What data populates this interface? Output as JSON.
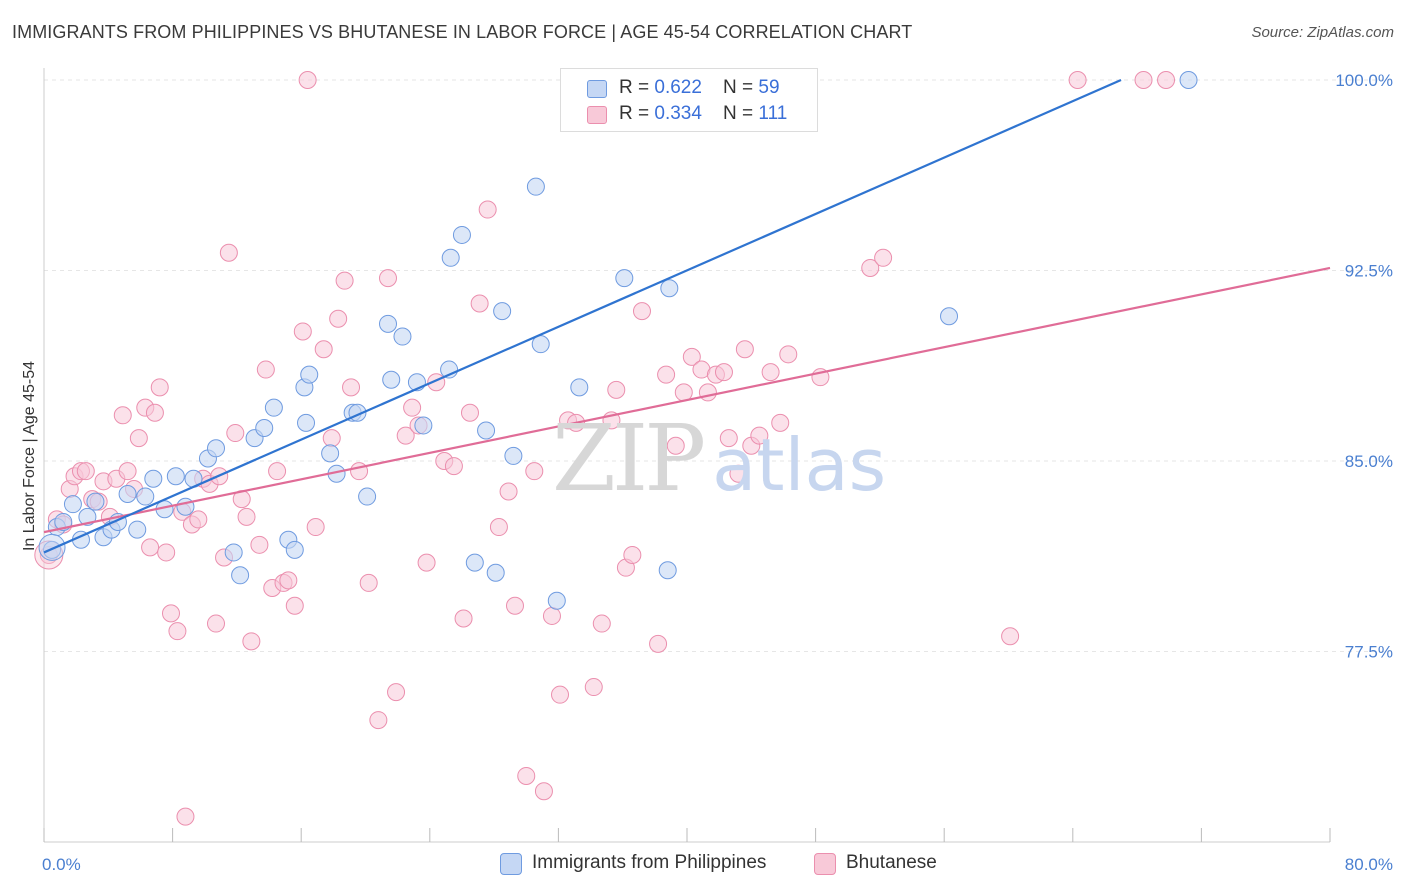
{
  "header": {
    "title": "IMMIGRANTS FROM PHILIPPINES VS BHUTANESE IN LABOR FORCE | AGE 45-54 CORRELATION CHART",
    "source": "Source: ZipAtlas.com"
  },
  "watermark": {
    "part1": "ZIP",
    "part2": "atlas"
  },
  "legend_top": {
    "rows": [
      {
        "r_label": "R = ",
        "r_value": "0.622",
        "n_label": "N = ",
        "n_value": "59"
      },
      {
        "r_label": "R = ",
        "r_value": "0.334",
        "n_label": "N = ",
        "n_value": "111"
      }
    ]
  },
  "chart_data": {
    "type": "scatter",
    "title": "IMMIGRANTS FROM PHILIPPINES VS BHUTANESE IN LABOR FORCE | AGE 45-54 CORRELATION CHART",
    "xlabel": "",
    "ylabel": "In Labor Force | Age 45-54",
    "xlim": [
      0,
      80
    ],
    "ylim": [
      70.0,
      101.0
    ],
    "x_tick_labels": [
      "0.0%",
      "80.0%"
    ],
    "y_ticks": [
      77.5,
      85.0,
      92.5,
      100.0
    ],
    "y_tick_labels": [
      "77.5%",
      "85.0%",
      "92.5%",
      "100.0%"
    ],
    "grid": true,
    "legend_position": "top-center and bottom",
    "colors": {
      "philippines_fill": "#c5d7f4",
      "philippines_stroke": "#6f9be0",
      "philippines_line": "#2f74d0",
      "bhutanese_fill": "#f8c9d8",
      "bhutanese_stroke": "#eb8fae",
      "bhutanese_line": "#e06c97",
      "tick_text": "#4a7fd0",
      "grid": "#e6e6e6"
    },
    "series": [
      {
        "name": "Immigrants from Philippines",
        "R": 0.622,
        "N": 59,
        "trend": {
          "x": [
            0.0,
            67.0
          ],
          "y": [
            81.4,
            100.0
          ]
        },
        "points": [
          [
            0.5,
            81.5
          ],
          [
            0.8,
            82.4
          ],
          [
            1.2,
            82.6
          ],
          [
            1.8,
            83.3
          ],
          [
            2.3,
            81.9
          ],
          [
            2.7,
            82.8
          ],
          [
            3.2,
            83.4
          ],
          [
            3.7,
            82.0
          ],
          [
            4.2,
            82.3
          ],
          [
            4.6,
            82.6
          ],
          [
            5.2,
            83.7
          ],
          [
            5.8,
            82.3
          ],
          [
            6.3,
            83.6
          ],
          [
            6.8,
            84.3
          ],
          [
            7.5,
            83.1
          ],
          [
            8.2,
            84.4
          ],
          [
            8.8,
            83.2
          ],
          [
            9.3,
            84.3
          ],
          [
            10.2,
            85.1
          ],
          [
            10.7,
            85.5
          ],
          [
            11.8,
            81.4
          ],
          [
            12.2,
            80.5
          ],
          [
            13.1,
            85.9
          ],
          [
            13.7,
            86.3
          ],
          [
            14.3,
            87.1
          ],
          [
            15.2,
            81.9
          ],
          [
            15.6,
            81.5
          ],
          [
            16.2,
            87.9
          ],
          [
            16.5,
            88.4
          ],
          [
            16.3,
            86.5
          ],
          [
            17.8,
            85.3
          ],
          [
            18.2,
            84.5
          ],
          [
            19.2,
            86.9
          ],
          [
            19.5,
            86.9
          ],
          [
            20.1,
            83.6
          ],
          [
            21.6,
            88.2
          ],
          [
            21.4,
            90.4
          ],
          [
            22.3,
            89.9
          ],
          [
            23.2,
            88.1
          ],
          [
            23.6,
            86.4
          ],
          [
            25.2,
            88.6
          ],
          [
            25.3,
            93.0
          ],
          [
            26.0,
            93.9
          ],
          [
            26.8,
            81.0
          ],
          [
            27.5,
            86.2
          ],
          [
            28.1,
            80.6
          ],
          [
            28.5,
            90.9
          ],
          [
            29.2,
            85.2
          ],
          [
            30.6,
            95.8
          ],
          [
            30.9,
            89.6
          ],
          [
            31.9,
            79.5
          ],
          [
            33.3,
            87.9
          ],
          [
            34.0,
            100.0
          ],
          [
            36.1,
            92.2
          ],
          [
            35.6,
            100.0
          ],
          [
            38.9,
            91.8
          ],
          [
            38.8,
            80.7
          ],
          [
            56.3,
            90.7
          ],
          [
            71.2,
            100.0
          ]
        ]
      },
      {
        "name": "Bhutanese",
        "R": 0.334,
        "N": 111,
        "trend": {
          "x": [
            0.0,
            80.0
          ],
          "y": [
            82.2,
            92.6
          ]
        },
        "points": [
          [
            0.3,
            81.3
          ],
          [
            0.8,
            82.7
          ],
          [
            1.2,
            82.5
          ],
          [
            1.6,
            83.9
          ],
          [
            1.9,
            84.4
          ],
          [
            2.3,
            84.6
          ],
          [
            2.6,
            84.6
          ],
          [
            3.0,
            83.5
          ],
          [
            3.4,
            83.4
          ],
          [
            3.7,
            84.2
          ],
          [
            4.1,
            82.8
          ],
          [
            4.5,
            84.3
          ],
          [
            4.9,
            86.8
          ],
          [
            5.2,
            84.6
          ],
          [
            5.6,
            83.9
          ],
          [
            5.9,
            85.9
          ],
          [
            6.3,
            87.1
          ],
          [
            6.6,
            81.6
          ],
          [
            6.9,
            86.9
          ],
          [
            7.2,
            87.9
          ],
          [
            7.6,
            81.4
          ],
          [
            7.9,
            79.0
          ],
          [
            8.3,
            78.3
          ],
          [
            8.6,
            83.0
          ],
          [
            8.8,
            71.0
          ],
          [
            9.2,
            82.5
          ],
          [
            9.6,
            82.7
          ],
          [
            9.9,
            84.3
          ],
          [
            10.3,
            84.1
          ],
          [
            10.7,
            78.6
          ],
          [
            11.2,
            81.2
          ],
          [
            11.5,
            93.2
          ],
          [
            11.9,
            86.1
          ],
          [
            12.3,
            83.5
          ],
          [
            12.6,
            82.8
          ],
          [
            12.9,
            77.9
          ],
          [
            13.4,
            81.7
          ],
          [
            13.8,
            88.6
          ],
          [
            14.2,
            80.0
          ],
          [
            14.5,
            84.6
          ],
          [
            14.9,
            80.2
          ],
          [
            15.2,
            80.3
          ],
          [
            15.6,
            79.3
          ],
          [
            16.1,
            90.1
          ],
          [
            16.4,
            100.0
          ],
          [
            16.9,
            82.4
          ],
          [
            17.4,
            89.4
          ],
          [
            17.9,
            85.9
          ],
          [
            18.3,
            90.6
          ],
          [
            18.7,
            92.1
          ],
          [
            19.1,
            87.9
          ],
          [
            19.6,
            84.6
          ],
          [
            20.2,
            80.2
          ],
          [
            20.8,
            74.8
          ],
          [
            21.4,
            92.2
          ],
          [
            21.9,
            75.9
          ],
          [
            22.5,
            86.0
          ],
          [
            22.9,
            87.1
          ],
          [
            23.3,
            86.4
          ],
          [
            23.8,
            81.0
          ],
          [
            24.4,
            88.1
          ],
          [
            24.9,
            85.0
          ],
          [
            25.5,
            84.8
          ],
          [
            26.1,
            78.8
          ],
          [
            26.5,
            86.9
          ],
          [
            27.1,
            91.2
          ],
          [
            27.6,
            94.9
          ],
          [
            28.3,
            82.4
          ],
          [
            28.9,
            83.8
          ],
          [
            29.3,
            79.3
          ],
          [
            30.0,
            72.6
          ],
          [
            30.5,
            84.6
          ],
          [
            31.1,
            72.0
          ],
          [
            31.6,
            78.9
          ],
          [
            32.1,
            75.8
          ],
          [
            32.6,
            86.6
          ],
          [
            33.1,
            86.5
          ],
          [
            33.7,
            100.0
          ],
          [
            34.2,
            76.1
          ],
          [
            34.7,
            78.6
          ],
          [
            35.3,
            86.6
          ],
          [
            35.6,
            87.8
          ],
          [
            36.2,
            80.8
          ],
          [
            36.6,
            81.3
          ],
          [
            37.2,
            90.9
          ],
          [
            37.7,
            100.0
          ],
          [
            38.2,
            77.8
          ],
          [
            38.7,
            88.4
          ],
          [
            39.3,
            85.6
          ],
          [
            39.8,
            87.7
          ],
          [
            40.3,
            89.1
          ],
          [
            40.9,
            88.6
          ],
          [
            41.3,
            87.7
          ],
          [
            41.8,
            88.4
          ],
          [
            42.3,
            88.5
          ],
          [
            42.6,
            85.9
          ],
          [
            43.2,
            84.5
          ],
          [
            43.6,
            89.4
          ],
          [
            44.0,
            85.6
          ],
          [
            44.5,
            86.0
          ],
          [
            45.2,
            88.5
          ],
          [
            45.8,
            86.5
          ],
          [
            46.3,
            89.2
          ],
          [
            48.3,
            88.3
          ],
          [
            51.4,
            92.6
          ],
          [
            52.2,
            93.0
          ],
          [
            60.1,
            78.1
          ],
          [
            64.3,
            100.0
          ],
          [
            68.4,
            100.0
          ],
          [
            69.8,
            100.0
          ],
          [
            10.9,
            84.4
          ]
        ]
      }
    ]
  },
  "legend_bottom": {
    "items": [
      {
        "label": "Immigrants from Philippines"
      },
      {
        "label": "Bhutanese"
      }
    ]
  }
}
